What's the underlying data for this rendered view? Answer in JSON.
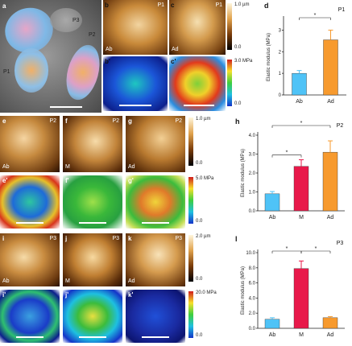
{
  "panels": {
    "a": {
      "label": "a",
      "tags": [
        "P1",
        "P2",
        "P3"
      ]
    },
    "b": {
      "label": "b",
      "tag": "Ab",
      "corner": "P1"
    },
    "c": {
      "label": "c",
      "tag": "Ad",
      "corner": "P1"
    },
    "b2": {
      "label": "b'"
    },
    "c2": {
      "label": "c'"
    },
    "e": {
      "label": "e",
      "tag": "Ab",
      "corner": "P2"
    },
    "f": {
      "label": "f",
      "tag": "M",
      "corner": "P2"
    },
    "g": {
      "label": "g",
      "tag": "Ad",
      "corner": "P2"
    },
    "e2": {
      "label": "e'"
    },
    "f2": {
      "label": "f'"
    },
    "g2": {
      "label": "g'"
    },
    "i": {
      "label": "i",
      "tag": "Ab",
      "corner": "P3"
    },
    "j": {
      "label": "j",
      "tag": "M",
      "corner": "P3"
    },
    "k": {
      "label": "k",
      "tag": "Ad",
      "corner": "P3"
    },
    "i2": {
      "label": "i'"
    },
    "j2": {
      "label": "j'"
    },
    "k2": {
      "label": "k'"
    }
  },
  "colorbars": {
    "height1": {
      "max": "1.0 µm",
      "min": "0.0"
    },
    "mod1": {
      "max": "3.0 MPa",
      "min": "0.0"
    },
    "height2": {
      "max": "1.0 µm",
      "min": "0.0"
    },
    "mod2": {
      "max": "5.0 MPa",
      "min": "0.0"
    },
    "height3": {
      "max": "2.0 µm",
      "min": "0.0"
    },
    "mod3": {
      "max": "20.0 MPa",
      "min": "0.0"
    }
  },
  "colors": {
    "Ab": "#4fc3f7",
    "M": "#e8194a",
    "Ad": "#f79a2e"
  },
  "chart_data": [
    {
      "panel": "d",
      "type": "bar",
      "title": "P1",
      "categories": [
        "Ab",
        "Ad"
      ],
      "values": [
        1.0,
        2.55
      ],
      "errors": [
        0.13,
        0.45
      ],
      "ylabel": "Elastic modulus (MPa)",
      "ylim": [
        0,
        3.5
      ],
      "yticks": [
        "0",
        "1",
        "2",
        "3"
      ],
      "sig": [
        [
          "Ab",
          "Ad"
        ]
      ],
      "sig_mark": "*"
    },
    {
      "panel": "h",
      "type": "bar",
      "title": "P2",
      "categories": [
        "Ab",
        "M",
        "Ad"
      ],
      "values": [
        0.9,
        2.35,
        3.1
      ],
      "errors": [
        0.12,
        0.35,
        0.6
      ],
      "ylabel": "Elastic modulus (MPa)",
      "ylim": [
        0,
        4.0
      ],
      "yticks": [
        "0.0",
        "1.0",
        "2.0",
        "3.0",
        "4.0"
      ],
      "sig": [
        [
          "Ab",
          "M"
        ],
        [
          "Ab",
          "Ad"
        ]
      ],
      "sig_mark": "*"
    },
    {
      "panel": "l",
      "type": "bar",
      "title": "P3",
      "categories": [
        "Ab",
        "M",
        "Ad"
      ],
      "values": [
        1.2,
        7.9,
        1.4
      ],
      "errors": [
        0.2,
        1.0,
        0.15
      ],
      "ylabel": "Elastic modulus (MPa)",
      "ylim": [
        0,
        10.0
      ],
      "yticks": [
        "0.0",
        "2.0",
        "4.0",
        "6.0",
        "8.0",
        "10.0"
      ],
      "sig": [
        [
          "Ab",
          "M"
        ],
        [
          "M",
          "Ad"
        ]
      ],
      "sig_mark": "*"
    }
  ]
}
